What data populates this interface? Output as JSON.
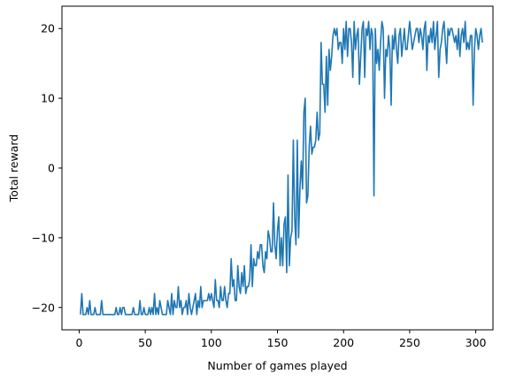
{
  "chart_data": {
    "type": "line",
    "title": "",
    "xlabel": "Number of games played",
    "ylabel": "Total reward",
    "xlim": [
      -13,
      313
    ],
    "ylim": [
      -23.2,
      23.2
    ],
    "xticks": [
      0,
      50,
      100,
      150,
      200,
      250,
      300
    ],
    "yticks": [
      -20,
      -10,
      0,
      10,
      20
    ],
    "xtick_labels": [
      "0",
      "50",
      "100",
      "150",
      "200",
      "250",
      "300"
    ],
    "ytick_labels": [
      "−20",
      "−10",
      "0",
      "10",
      "20"
    ],
    "grid": false,
    "legend": "none",
    "series": [
      {
        "color": "#1f77b4",
        "x_start": 1,
        "x_step": 1,
        "values": [
          -21,
          -18,
          -21,
          -21,
          -21,
          -20,
          -21,
          -19,
          -21,
          -21,
          -21,
          -20,
          -21,
          -21,
          -21,
          -21,
          -19,
          -21,
          -21,
          -21,
          -21,
          -21,
          -21,
          -21,
          -21,
          -21,
          -21,
          -20,
          -21,
          -21,
          -20,
          -21,
          -20,
          -20,
          -21,
          -21,
          -21,
          -21,
          -21,
          -21,
          -20,
          -21,
          -21,
          -21,
          -21,
          -19,
          -21,
          -21,
          -20,
          -21,
          -21,
          -21,
          -20,
          -21,
          -20,
          -21,
          -18,
          -21,
          -20,
          -21,
          -19,
          -20,
          -21,
          -21,
          -21,
          -21,
          -19,
          -20,
          -21,
          -18,
          -21,
          -19,
          -20,
          -20,
          -17,
          -20,
          -19,
          -21,
          -20,
          -20,
          -19,
          -21,
          -18,
          -20,
          -21,
          -20,
          -19,
          -18,
          -21,
          -19,
          -20,
          -17,
          -20,
          -19,
          -19,
          -19,
          -19,
          -18,
          -19,
          -18,
          -19,
          -20,
          -16,
          -19,
          -19,
          -20,
          -17,
          -19,
          -19,
          -17,
          -19,
          -20,
          -18,
          -18,
          -13,
          -17,
          -16,
          -19,
          -19,
          -14,
          -17,
          -18,
          -15,
          -17,
          -14,
          -18,
          -17,
          -17,
          -16,
          -11,
          -17,
          -13,
          -14,
          -14,
          -12,
          -13,
          -11,
          -11,
          -14,
          -15,
          -12,
          -13,
          -9,
          -10,
          -12,
          -12,
          -5,
          -11,
          -13,
          -9,
          -7,
          -14,
          -10,
          -14,
          -8,
          -7,
          -15,
          -1,
          -14,
          -10,
          -9,
          4,
          -7,
          -11,
          4,
          -10,
          -3,
          1,
          -3,
          8,
          10,
          -5,
          -4,
          3,
          6,
          2,
          3,
          3,
          4,
          8,
          4,
          5,
          18,
          12,
          12,
          8,
          16,
          9,
          17,
          14,
          16,
          19,
          20,
          19,
          20,
          17,
          18,
          18,
          15,
          20,
          17,
          21,
          16,
          20,
          20,
          18,
          13,
          21,
          17,
          19,
          20,
          12,
          16,
          20,
          21,
          13,
          20,
          19,
          21,
          17,
          20,
          19,
          -4,
          20,
          15,
          17,
          14,
          18,
          21,
          20,
          10,
          17,
          16,
          19,
          17,
          9,
          19,
          17,
          20,
          17,
          15,
          19,
          20,
          16,
          18,
          20,
          17,
          17,
          19,
          21,
          19,
          17,
          18,
          19,
          20,
          20,
          18,
          20,
          19,
          17,
          20,
          21,
          14,
          19,
          18,
          20,
          18,
          21,
          17,
          19,
          21,
          13,
          17,
          18,
          20,
          21,
          18,
          15,
          20,
          19,
          20,
          20,
          19,
          18,
          19,
          17,
          20,
          16,
          19,
          20,
          18,
          21,
          17,
          18,
          17,
          19,
          19,
          9,
          17,
          20,
          19,
          17,
          19,
          20,
          18
        ]
      }
    ]
  }
}
